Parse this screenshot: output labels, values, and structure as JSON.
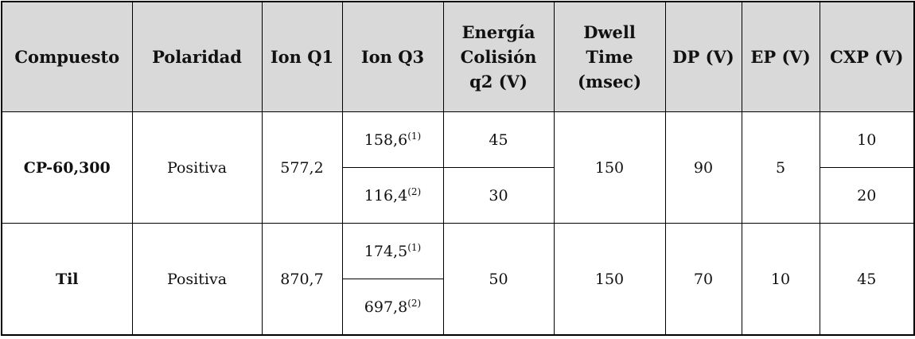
{
  "table": {
    "headers": [
      "Compuesto",
      "Polaridad",
      "Ion Q1",
      "Ion Q3",
      "Energía Colisión q2 (V)",
      "Dwell Time (msec)",
      "DP (V)",
      "EP (V)",
      "CXP (V)"
    ],
    "rows": [
      {
        "compuesto": "CP-60,300",
        "polaridad": "Positiva",
        "ion_q1": "577,2",
        "transitions": [
          {
            "ion_q3": "158,6",
            "note": "(1)",
            "energia": "45",
            "cxp": "10"
          },
          {
            "ion_q3": "116,4",
            "note": "(2)",
            "energia": "30",
            "cxp": "20"
          }
        ],
        "dwell": "150",
        "dp": "90",
        "ep": "5"
      },
      {
        "compuesto": "Til",
        "polaridad": "Positiva",
        "ion_q1": "870,7",
        "transitions": [
          {
            "ion_q3": "174,5",
            "note": "(1)"
          },
          {
            "ion_q3": "697,8",
            "note": "(2)"
          }
        ],
        "energia": "50",
        "dwell": "150",
        "dp": "70",
        "ep": "10",
        "cxp": "45"
      }
    ]
  }
}
